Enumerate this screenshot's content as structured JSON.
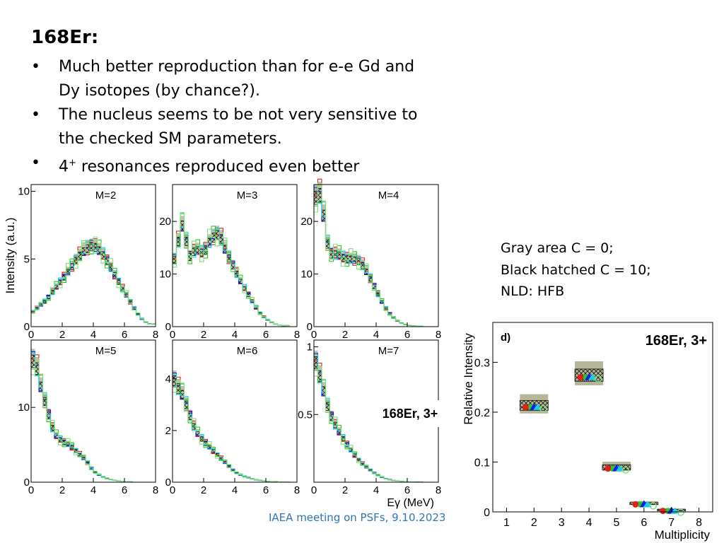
{
  "slide": {
    "title": "168Er:",
    "bullets": [
      {
        "text": "Much better reproduction than for e-e Gd and Dy isotopes (by chance?)."
      },
      {
        "text": "The nucleus seems to be not very sensitive to the checked SM parameters."
      },
      {
        "text_after": " resonances reproduced even better",
        "sup": "+",
        "text_before": "4"
      }
    ],
    "notes": [
      "Gray area C = 0;",
      "Black hatched C = 10;",
      "NLD: HFB"
    ],
    "footer": "IAEA meeting on PSFs, 9.10.2023",
    "colors": {
      "gray_band": "#b8b69a",
      "black": "#111111",
      "red": "#e0201a",
      "green": "#22cc22",
      "blue": "#1a1aee",
      "cyan": "#14d4e4",
      "lightgreen": "#7fe07f"
    }
  },
  "chart_data": [
    {
      "type": "area",
      "panel": "M=2",
      "ylabel": "Intensity (a.u.)",
      "xticks": [
        "0",
        "2",
        "4",
        "6",
        "8"
      ],
      "yticks": [
        "0",
        "5",
        "10"
      ],
      "xlim": [
        0,
        8
      ],
      "ylim": [
        0,
        10.5
      ],
      "series": [
        {
          "x": [
            0,
            0.5,
            1,
            1.5,
            2,
            2.5,
            3,
            3.5,
            4,
            4.5,
            5,
            5.5,
            6,
            6.5,
            7,
            7.5
          ],
          "values": [
            1.0,
            1.5,
            2.0,
            2.8,
            3.5,
            4.3,
            5.2,
            5.8,
            6.1,
            5.6,
            4.7,
            3.6,
            2.6,
            1.6,
            0.7,
            0.2
          ]
        }
      ]
    },
    {
      "type": "area",
      "panel": "M=3",
      "xticks": [
        "0",
        "2",
        "4",
        "6",
        "8"
      ],
      "yticks": [
        "0",
        "10",
        "20"
      ],
      "xlim": [
        0,
        8
      ],
      "ylim": [
        0,
        27
      ],
      "series": [
        {
          "x": [
            0,
            0.25,
            0.5,
            0.75,
            1,
            1.5,
            2,
            2.5,
            3,
            3.5,
            4,
            4.5,
            5,
            5.5,
            6,
            6.5,
            7
          ],
          "values": [
            12,
            14,
            19,
            20,
            13,
            15,
            14,
            17,
            18,
            14,
            11,
            8,
            5.5,
            3,
            1.5,
            0.6,
            0.2
          ]
        }
      ]
    },
    {
      "type": "area",
      "panel": "M=4",
      "xticks": [
        "0",
        "2",
        "4",
        "6",
        "8"
      ],
      "yticks": [
        "0",
        "10",
        "20"
      ],
      "xlim": [
        0,
        8
      ],
      "ylim": [
        0,
        27
      ],
      "series": [
        {
          "x": [
            0,
            0.25,
            0.5,
            0.75,
            1,
            1.5,
            2,
            2.5,
            3,
            3.5,
            4,
            4.5,
            5,
            5.5,
            6,
            6.5
          ],
          "values": [
            24,
            26,
            25,
            18,
            14,
            14,
            13,
            13,
            12.5,
            10,
            7,
            4,
            2,
            0.8,
            0.3,
            0.1
          ]
        }
      ]
    },
    {
      "type": "area",
      "panel": "M=5",
      "xticks": [
        "0",
        "2",
        "4",
        "6",
        "8"
      ],
      "yticks": [
        "0",
        "10"
      ],
      "xlim": [
        0,
        8
      ],
      "ylim": [
        0,
        19
      ],
      "series": [
        {
          "x": [
            0,
            0.25,
            0.5,
            0.75,
            1,
            1.5,
            2,
            2.5,
            3,
            3.5,
            4,
            4.5,
            5,
            5.5,
            6
          ],
          "values": [
            16,
            17,
            14,
            12,
            10,
            6.5,
            5.5,
            5,
            4,
            3,
            1.5,
            0.8,
            0.4,
            0.2,
            0.05
          ]
        }
      ]
    },
    {
      "type": "area",
      "panel": "M=6",
      "xticks": [
        "0",
        "2",
        "4",
        "6",
        "8"
      ],
      "yticks": [
        "0",
        "2",
        "4"
      ],
      "xlim": [
        0,
        8
      ],
      "ylim": [
        0,
        5.5
      ],
      "series": [
        {
          "x": [
            0,
            0.25,
            0.5,
            0.75,
            1,
            1.5,
            2,
            2.5,
            3,
            3.5,
            4,
            4.5,
            5,
            5.5,
            6,
            6.5,
            7
          ],
          "values": [
            4.2,
            3.8,
            3.6,
            3.3,
            2.8,
            2.0,
            1.6,
            1.3,
            1.0,
            0.7,
            0.4,
            0.25,
            0.15,
            0.08,
            0.04,
            0.02,
            0.01
          ]
        }
      ]
    },
    {
      "type": "area",
      "panel": "M=7",
      "xlabel": "Eγ (MeV)",
      "xticks": [
        "0",
        "2",
        "4",
        "6",
        "8"
      ],
      "yticks": [
        "0.5",
        "1"
      ],
      "xlim": [
        0,
        8
      ],
      "ylim": [
        0,
        1.05
      ],
      "annotation": "168Er, 3+",
      "series": [
        {
          "x": [
            0,
            0.25,
            0.5,
            0.75,
            1,
            1.5,
            2,
            2.5,
            3,
            3.5,
            4,
            4.5,
            5,
            5.5,
            6,
            6.5,
            7
          ],
          "values": [
            0.95,
            0.85,
            0.75,
            0.62,
            0.52,
            0.4,
            0.3,
            0.22,
            0.15,
            0.1,
            0.06,
            0.03,
            0.015,
            0.007,
            0.003,
            0.001,
            0.0
          ]
        }
      ]
    },
    {
      "type": "scatter",
      "panel": "d)",
      "title": "168Er, 3+",
      "xlabel": "Multiplicity",
      "ylabel": "Relative Intensity",
      "xticks": [
        "1",
        "2",
        "3",
        "4",
        "5",
        "6",
        "7",
        "8"
      ],
      "yticks": [
        "0",
        "0.1",
        "0.2",
        "0.3"
      ],
      "xlim": [
        0.5,
        8.5
      ],
      "ylim": [
        0,
        0.38
      ],
      "x": [
        2,
        4,
        5,
        6,
        7
      ],
      "values": [
        0.21,
        0.27,
        0.087,
        0.015,
        0.002
      ]
    }
  ]
}
